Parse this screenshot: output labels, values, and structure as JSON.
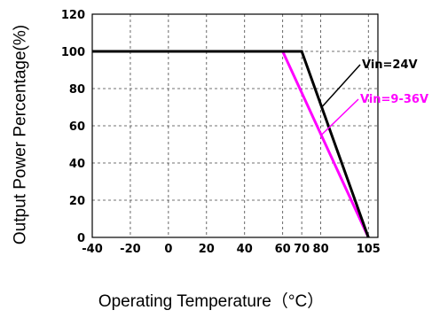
{
  "chart_data": {
    "type": "line",
    "xlabel": "Operating Temperature（°C）",
    "ylabel": "Output Power Percentage(%)",
    "xlim": [
      -40,
      110
    ],
    "ylim": [
      0,
      120
    ],
    "x_ticks": [
      -40,
      -20,
      0,
      20,
      40,
      60,
      70,
      80,
      105
    ],
    "x_tick_labels": [
      "-40",
      "-20",
      "0",
      "20",
      "40",
      "60",
      "70",
      "80",
      "105"
    ],
    "y_ticks": [
      0,
      20,
      40,
      60,
      80,
      100,
      120
    ],
    "y_tick_labels": [
      "0",
      "20",
      "40",
      "60",
      "80",
      "100",
      "120"
    ],
    "grid": true,
    "series": [
      {
        "name": "Vin=24V",
        "color": "#000000",
        "x": [
          -40,
          70,
          105
        ],
        "y": [
          100,
          100,
          0
        ]
      },
      {
        "name": "Vin=9-36V",
        "color": "#ff00ff",
        "x": [
          60,
          105
        ],
        "y": [
          100,
          0
        ]
      }
    ]
  }
}
